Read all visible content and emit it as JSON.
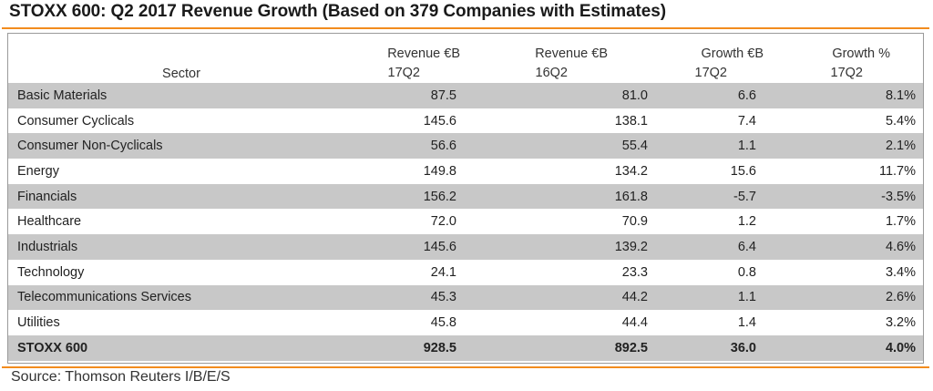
{
  "title": "STOXX 600: Q2 2017 Revenue Growth (Based on 379 Companies with Estimates)",
  "source": "Source: Thomson Reuters I/B/E/S",
  "colors": {
    "accent_rule": "#f28c1e",
    "row_shade": "#c8c8c8",
    "frame_border": "#9a9a9a"
  },
  "chart_data": {
    "type": "table",
    "title": "STOXX 600: Q2 2017 Revenue Growth (Based on 379 Companies with Estimates)",
    "columns": [
      {
        "label": "Sector",
        "sublabel": ""
      },
      {
        "label": "Revenue €B",
        "sublabel": "17Q2"
      },
      {
        "label": "Revenue €B",
        "sublabel": "16Q2"
      },
      {
        "label": "Growth €B",
        "sublabel": "17Q2"
      },
      {
        "label": "Growth %",
        "sublabel": "17Q2"
      }
    ],
    "rows": [
      {
        "sector": "Basic Materials",
        "rev_17q2": "87.5",
        "rev_16q2": "81.0",
        "growth_eur": "6.6",
        "growth_pct": "8.1%"
      },
      {
        "sector": "Consumer Cyclicals",
        "rev_17q2": "145.6",
        "rev_16q2": "138.1",
        "growth_eur": "7.4",
        "growth_pct": "5.4%"
      },
      {
        "sector": "Consumer Non-Cyclicals",
        "rev_17q2": "56.6",
        "rev_16q2": "55.4",
        "growth_eur": "1.1",
        "growth_pct": "2.1%"
      },
      {
        "sector": "Energy",
        "rev_17q2": "149.8",
        "rev_16q2": "134.2",
        "growth_eur": "15.6",
        "growth_pct": "11.7%"
      },
      {
        "sector": "Financials",
        "rev_17q2": "156.2",
        "rev_16q2": "161.8",
        "growth_eur": "-5.7",
        "growth_pct": "-3.5%"
      },
      {
        "sector": "Healthcare",
        "rev_17q2": "72.0",
        "rev_16q2": "70.9",
        "growth_eur": "1.2",
        "growth_pct": "1.7%"
      },
      {
        "sector": "Industrials",
        "rev_17q2": "145.6",
        "rev_16q2": "139.2",
        "growth_eur": "6.4",
        "growth_pct": "4.6%"
      },
      {
        "sector": "Technology",
        "rev_17q2": "24.1",
        "rev_16q2": "23.3",
        "growth_eur": "0.8",
        "growth_pct": "3.4%"
      },
      {
        "sector": "Telecommunications Services",
        "rev_17q2": "45.3",
        "rev_16q2": "44.2",
        "growth_eur": "1.1",
        "growth_pct": "2.6%"
      },
      {
        "sector": "Utilities",
        "rev_17q2": "45.8",
        "rev_16q2": "44.4",
        "growth_eur": "1.4",
        "growth_pct": "3.2%"
      }
    ],
    "total": {
      "sector": "STOXX 600",
      "rev_17q2": "928.5",
      "rev_16q2": "892.5",
      "growth_eur": "36.0",
      "growth_pct": "4.0%"
    }
  }
}
